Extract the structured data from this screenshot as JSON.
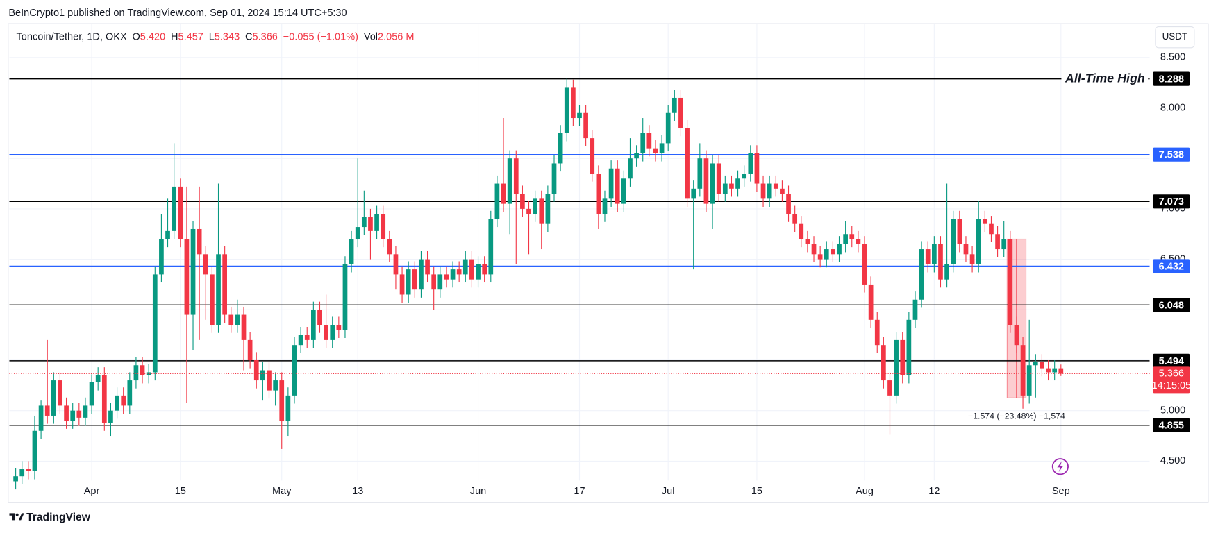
{
  "attribution": "BeInCrypto1 published on TradingView.com, Sep 01, 2024 15:14 UTC+5:30",
  "footer": "TradingView",
  "currency_button": "USDT",
  "chart_data": {
    "type": "candlestick",
    "legend": {
      "symbol": "Toncoin/Tether, 1D, OKX",
      "items": [
        {
          "key": "O",
          "value": "5.420"
        },
        {
          "key": "H",
          "value": "5.457"
        },
        {
          "key": "L",
          "value": "5.343"
        },
        {
          "key": "C",
          "value": "5.366"
        }
      ],
      "change": "−0.055 (−1.01%)",
      "volume": {
        "key": "Vol",
        "value": "2.056 M"
      }
    },
    "up_color": "#089981",
    "down_color": "#f23645",
    "xlim": [
      "2024-03-19",
      "2024-09-15"
    ],
    "xticks": [
      {
        "value": "2024-04-01",
        "label": "Apr"
      },
      {
        "value": "2024-04-15",
        "label": "15"
      },
      {
        "value": "2024-05-01",
        "label": "May"
      },
      {
        "value": "2024-05-13",
        "label": "13"
      },
      {
        "value": "2024-06-01",
        "label": "Jun"
      },
      {
        "value": "2024-06-17",
        "label": "17"
      },
      {
        "value": "2024-07-01",
        "label": "Jul"
      },
      {
        "value": "2024-07-15",
        "label": "15"
      },
      {
        "value": "2024-08-01",
        "label": "Aug"
      },
      {
        "value": "2024-08-12",
        "label": "12"
      },
      {
        "value": "2024-09-01",
        "label": "Sep"
      }
    ],
    "ylim": [
      4.092,
      8.831
    ],
    "yticks": [
      {
        "value": 4.5,
        "label": "4.500"
      },
      {
        "value": 5,
        "label": "5.000"
      },
      {
        "value": 5.5,
        "label": "5.500"
      },
      {
        "value": 6,
        "label": "6.000"
      },
      {
        "value": 6.5,
        "label": "6.500"
      },
      {
        "value": 7,
        "label": "7.000"
      },
      {
        "value": 7.5,
        "label": "7.500"
      },
      {
        "value": 8,
        "label": "8.000"
      },
      {
        "value": 8.5,
        "label": "8.500"
      }
    ],
    "grid": true,
    "levels": [
      {
        "value": 8.288,
        "color": "#000000",
        "label": "All-Time High"
      },
      {
        "value": 7.538,
        "color": "#2962ff"
      },
      {
        "value": 7.073,
        "color": "#000000"
      },
      {
        "value": 6.432,
        "color": "#2962ff"
      },
      {
        "value": 6.048,
        "color": "#000000"
      },
      {
        "value": 5.494,
        "color": "#000000"
      },
      {
        "value": 4.855,
        "color": "#000000"
      }
    ],
    "last": {
      "value": 5.366,
      "countdown": "14:15:05",
      "color": "#f23645"
    },
    "measure": {
      "from": 6.7,
      "to": 5.126,
      "x": [
        "2024-08-24",
        "2024-08-26"
      ],
      "label": "−1.574 (−23.48%) −1,574"
    },
    "x": [
      "2024-03-20",
      "2024-03-21",
      "2024-03-22",
      "2024-03-23",
      "2024-03-24",
      "2024-03-25",
      "2024-03-26",
      "2024-03-27",
      "2024-03-28",
      "2024-03-29",
      "2024-03-30",
      "2024-03-31",
      "2024-04-01",
      "2024-04-02",
      "2024-04-03",
      "2024-04-04",
      "2024-04-05",
      "2024-04-06",
      "2024-04-07",
      "2024-04-08",
      "2024-04-09",
      "2024-04-10",
      "2024-04-11",
      "2024-04-12",
      "2024-04-13",
      "2024-04-14",
      "2024-04-15",
      "2024-04-16",
      "2024-04-17",
      "2024-04-18",
      "2024-04-19",
      "2024-04-20",
      "2024-04-21",
      "2024-04-22",
      "2024-04-23",
      "2024-04-24",
      "2024-04-25",
      "2024-04-26",
      "2024-04-27",
      "2024-04-28",
      "2024-04-29",
      "2024-04-30",
      "2024-05-01",
      "2024-05-02",
      "2024-05-03",
      "2024-05-04",
      "2024-05-05",
      "2024-05-06",
      "2024-05-07",
      "2024-05-08",
      "2024-05-09",
      "2024-05-10",
      "2024-05-11",
      "2024-05-12",
      "2024-05-13",
      "2024-05-14",
      "2024-05-15",
      "2024-05-16",
      "2024-05-17",
      "2024-05-18",
      "2024-05-19",
      "2024-05-20",
      "2024-05-21",
      "2024-05-22",
      "2024-05-23",
      "2024-05-24",
      "2024-05-25",
      "2024-05-26",
      "2024-05-27",
      "2024-05-28",
      "2024-05-29",
      "2024-05-30",
      "2024-05-31",
      "2024-06-01",
      "2024-06-02",
      "2024-06-03",
      "2024-06-04",
      "2024-06-05",
      "2024-06-06",
      "2024-06-07",
      "2024-06-08",
      "2024-06-09",
      "2024-06-10",
      "2024-06-11",
      "2024-06-12",
      "2024-06-13",
      "2024-06-14",
      "2024-06-15",
      "2024-06-16",
      "2024-06-17",
      "2024-06-18",
      "2024-06-19",
      "2024-06-20",
      "2024-06-21",
      "2024-06-22",
      "2024-06-23",
      "2024-06-24",
      "2024-06-25",
      "2024-06-26",
      "2024-06-27",
      "2024-06-28",
      "2024-06-29",
      "2024-06-30",
      "2024-07-01",
      "2024-07-02",
      "2024-07-03",
      "2024-07-04",
      "2024-07-05",
      "2024-07-06",
      "2024-07-07",
      "2024-07-08",
      "2024-07-09",
      "2024-07-10",
      "2024-07-11",
      "2024-07-12",
      "2024-07-13",
      "2024-07-14",
      "2024-07-15",
      "2024-07-16",
      "2024-07-17",
      "2024-07-18",
      "2024-07-19",
      "2024-07-20",
      "2024-07-21",
      "2024-07-22",
      "2024-07-23",
      "2024-07-24",
      "2024-07-25",
      "2024-07-26",
      "2024-07-27",
      "2024-07-28",
      "2024-07-29",
      "2024-07-30",
      "2024-07-31",
      "2024-08-01",
      "2024-08-02",
      "2024-08-03",
      "2024-08-04",
      "2024-08-05",
      "2024-08-06",
      "2024-08-07",
      "2024-08-08",
      "2024-08-09",
      "2024-08-10",
      "2024-08-11",
      "2024-08-12",
      "2024-08-13",
      "2024-08-14",
      "2024-08-15",
      "2024-08-16",
      "2024-08-17",
      "2024-08-18",
      "2024-08-19",
      "2024-08-20",
      "2024-08-21",
      "2024-08-22",
      "2024-08-23",
      "2024-08-24",
      "2024-08-25",
      "2024-08-26",
      "2024-08-27",
      "2024-08-28",
      "2024-08-29",
      "2024-08-30",
      "2024-08-31",
      "2024-09-01"
    ],
    "ohlc": [
      [
        4.3,
        4.43,
        4.22,
        4.35
      ],
      [
        4.35,
        4.5,
        4.27,
        4.42
      ],
      [
        4.42,
        4.5,
        4.32,
        4.4
      ],
      [
        4.4,
        4.95,
        4.32,
        4.8
      ],
      [
        4.8,
        5.1,
        4.72,
        5.05
      ],
      [
        5.05,
        5.7,
        4.87,
        4.95
      ],
      [
        4.95,
        5.38,
        4.87,
        5.3
      ],
      [
        5.3,
        5.38,
        4.97,
        5.05
      ],
      [
        5.05,
        5.13,
        4.82,
        4.9
      ],
      [
        4.9,
        5.08,
        4.82,
        5.0
      ],
      [
        5.0,
        5.08,
        4.85,
        4.93
      ],
      [
        4.93,
        5.13,
        4.85,
        5.05
      ],
      [
        5.05,
        5.36,
        4.97,
        5.28
      ],
      [
        5.28,
        5.43,
        5.2,
        5.35
      ],
      [
        5.35,
        5.43,
        4.8,
        4.88
      ],
      [
        4.88,
        5.08,
        4.75,
        5.0
      ],
      [
        5.0,
        5.23,
        4.92,
        5.15
      ],
      [
        5.15,
        5.23,
        4.97,
        5.05
      ],
      [
        5.05,
        5.38,
        4.97,
        5.3
      ],
      [
        5.3,
        5.53,
        5.22,
        5.45
      ],
      [
        5.45,
        5.53,
        5.27,
        5.35
      ],
      [
        5.35,
        5.46,
        5.27,
        5.38
      ],
      [
        5.38,
        6.43,
        5.3,
        6.35
      ],
      [
        6.35,
        6.95,
        6.27,
        6.7
      ],
      [
        6.7,
        7.1,
        6.62,
        6.78
      ],
      [
        6.78,
        7.65,
        6.7,
        7.22
      ],
      [
        7.22,
        7.3,
        6.62,
        6.7
      ],
      [
        6.7,
        7.22,
        5.08,
        5.95
      ],
      [
        5.95,
        6.88,
        5.6,
        6.8
      ],
      [
        6.8,
        7.22,
        5.7,
        6.55
      ],
      [
        6.55,
        6.63,
        5.9,
        6.35
      ],
      [
        6.35,
        6.43,
        5.77,
        5.85
      ],
      [
        5.85,
        7.25,
        5.77,
        6.55
      ],
      [
        6.55,
        6.63,
        5.87,
        5.95
      ],
      [
        5.95,
        6.03,
        5.77,
        5.85
      ],
      [
        5.85,
        6.1,
        5.77,
        5.95
      ],
      [
        5.95,
        6.03,
        5.4,
        5.7
      ],
      [
        5.7,
        5.78,
        5.42,
        5.5
      ],
      [
        5.5,
        5.58,
        5.22,
        5.3
      ],
      [
        5.3,
        5.48,
        5.1,
        5.4
      ],
      [
        5.4,
        5.48,
        5.12,
        5.2
      ],
      [
        5.2,
        5.38,
        5.05,
        5.3
      ],
      [
        5.3,
        5.38,
        4.62,
        4.9
      ],
      [
        4.9,
        5.23,
        4.75,
        5.15
      ],
      [
        5.15,
        5.73,
        5.07,
        5.65
      ],
      [
        5.65,
        5.83,
        5.57,
        5.75
      ],
      [
        5.75,
        5.83,
        5.62,
        5.7
      ],
      [
        5.7,
        6.08,
        5.62,
        6.0
      ],
      [
        6.0,
        6.08,
        5.77,
        5.85
      ],
      [
        5.85,
        6.15,
        5.62,
        5.7
      ],
      [
        5.7,
        5.93,
        5.62,
        5.85
      ],
      [
        5.85,
        5.93,
        5.72,
        5.8
      ],
      [
        5.8,
        6.53,
        5.72,
        6.45
      ],
      [
        6.45,
        6.78,
        6.37,
        6.7
      ],
      [
        6.7,
        7.5,
        6.62,
        6.82
      ],
      [
        6.82,
        7.18,
        6.74,
        6.92
      ],
      [
        6.92,
        7.0,
        6.5,
        6.78
      ],
      [
        6.78,
        7.03,
        6.7,
        6.95
      ],
      [
        6.95,
        7.03,
        6.62,
        6.7
      ],
      [
        6.7,
        6.78,
        6.47,
        6.55
      ],
      [
        6.55,
        6.63,
        6.2,
        6.35
      ],
      [
        6.35,
        6.43,
        6.07,
        6.15
      ],
      [
        6.15,
        6.48,
        6.07,
        6.4
      ],
      [
        6.4,
        6.48,
        6.12,
        6.2
      ],
      [
        6.2,
        6.58,
        6.12,
        6.5
      ],
      [
        6.5,
        6.58,
        6.27,
        6.35
      ],
      [
        6.35,
        6.43,
        6.0,
        6.2
      ],
      [
        6.2,
        6.43,
        6.12,
        6.35
      ],
      [
        6.35,
        6.43,
        6.22,
        6.3
      ],
      [
        6.3,
        6.48,
        6.22,
        6.4
      ],
      [
        6.4,
        6.48,
        6.27,
        6.35
      ],
      [
        6.35,
        6.58,
        6.27,
        6.5
      ],
      [
        6.5,
        6.58,
        6.22,
        6.3
      ],
      [
        6.3,
        6.53,
        6.22,
        6.45
      ],
      [
        6.45,
        6.53,
        6.27,
        6.35
      ],
      [
        6.35,
        6.98,
        6.27,
        6.9
      ],
      [
        6.9,
        7.33,
        6.82,
        7.25
      ],
      [
        7.25,
        7.9,
        6.97,
        7.05
      ],
      [
        7.05,
        7.58,
        6.75,
        7.5
      ],
      [
        7.5,
        7.58,
        6.45,
        7.15
      ],
      [
        7.15,
        7.23,
        6.92,
        7.0
      ],
      [
        7.0,
        7.08,
        6.55,
        6.95
      ],
      [
        6.95,
        7.18,
        6.87,
        7.1
      ],
      [
        7.1,
        7.18,
        6.6,
        6.85
      ],
      [
        6.85,
        7.23,
        6.77,
        7.15
      ],
      [
        7.15,
        7.53,
        7.07,
        7.45
      ],
      [
        7.45,
        7.83,
        7.37,
        7.75
      ],
      [
        7.75,
        8.29,
        7.67,
        8.2
      ],
      [
        8.2,
        8.28,
        7.82,
        7.9
      ],
      [
        7.9,
        8.03,
        7.82,
        7.95
      ],
      [
        7.95,
        8.03,
        7.62,
        7.7
      ],
      [
        7.7,
        7.78,
        7.27,
        7.35
      ],
      [
        7.35,
        7.43,
        6.8,
        6.95
      ],
      [
        6.95,
        7.18,
        6.87,
        7.1
      ],
      [
        7.1,
        7.48,
        7.02,
        7.4
      ],
      [
        7.4,
        7.48,
        6.97,
        7.05
      ],
      [
        7.05,
        7.38,
        6.97,
        7.3
      ],
      [
        7.3,
        7.7,
        7.22,
        7.5
      ],
      [
        7.5,
        7.63,
        7.42,
        7.55
      ],
      [
        7.55,
        7.9,
        7.47,
        7.75
      ],
      [
        7.75,
        7.83,
        7.52,
        7.6
      ],
      [
        7.6,
        7.68,
        7.47,
        7.55
      ],
      [
        7.55,
        7.73,
        7.47,
        7.65
      ],
      [
        7.65,
        8.03,
        7.57,
        7.95
      ],
      [
        7.95,
        8.18,
        7.87,
        8.1
      ],
      [
        8.1,
        8.18,
        7.72,
        7.8
      ],
      [
        7.8,
        7.88,
        7.02,
        7.1
      ],
      [
        7.1,
        7.28,
        6.4,
        7.2
      ],
      [
        7.2,
        7.65,
        7.12,
        7.5
      ],
      [
        7.5,
        7.58,
        6.97,
        7.05
      ],
      [
        7.05,
        7.53,
        6.8,
        7.45
      ],
      [
        7.45,
        7.53,
        7.07,
        7.15
      ],
      [
        7.15,
        7.33,
        7.07,
        7.25
      ],
      [
        7.25,
        7.33,
        7.12,
        7.2
      ],
      [
        7.2,
        7.38,
        7.12,
        7.3
      ],
      [
        7.3,
        7.43,
        7.22,
        7.35
      ],
      [
        7.35,
        7.63,
        7.27,
        7.55
      ],
      [
        7.55,
        7.63,
        7.17,
        7.25
      ],
      [
        7.25,
        7.33,
        7.02,
        7.1
      ],
      [
        7.1,
        7.33,
        7.02,
        7.25
      ],
      [
        7.25,
        7.33,
        7.12,
        7.2
      ],
      [
        7.2,
        7.28,
        7.07,
        7.15
      ],
      [
        7.15,
        7.23,
        6.87,
        6.95
      ],
      [
        6.95,
        7.03,
        6.77,
        6.85
      ],
      [
        6.85,
        6.93,
        6.62,
        6.7
      ],
      [
        6.7,
        6.78,
        6.57,
        6.65
      ],
      [
        6.65,
        6.73,
        6.47,
        6.55
      ],
      [
        6.55,
        6.63,
        6.42,
        6.5
      ],
      [
        6.5,
        6.68,
        6.42,
        6.6
      ],
      [
        6.6,
        6.68,
        6.47,
        6.55
      ],
      [
        6.55,
        6.73,
        6.47,
        6.65
      ],
      [
        6.65,
        6.88,
        6.57,
        6.75
      ],
      [
        6.75,
        6.83,
        6.62,
        6.7
      ],
      [
        6.7,
        6.78,
        6.57,
        6.65
      ],
      [
        6.65,
        6.73,
        6.17,
        6.25
      ],
      [
        6.25,
        6.33,
        5.82,
        5.9
      ],
      [
        5.9,
        5.98,
        5.57,
        5.65
      ],
      [
        5.65,
        5.73,
        5.22,
        5.3
      ],
      [
        5.3,
        5.38,
        4.76,
        5.15
      ],
      [
        5.15,
        5.78,
        5.07,
        5.7
      ],
      [
        5.7,
        5.78,
        5.27,
        5.35
      ],
      [
        5.35,
        5.98,
        5.27,
        5.9
      ],
      [
        5.9,
        6.18,
        5.82,
        6.1
      ],
      [
        6.1,
        6.68,
        6.02,
        6.6
      ],
      [
        6.6,
        6.68,
        6.37,
        6.45
      ],
      [
        6.45,
        6.73,
        6.37,
        6.65
      ],
      [
        6.65,
        6.73,
        6.22,
        6.3
      ],
      [
        6.3,
        7.25,
        6.22,
        6.45
      ],
      [
        6.45,
        6.98,
        6.37,
        6.9
      ],
      [
        6.9,
        6.98,
        6.57,
        6.65
      ],
      [
        6.65,
        6.73,
        6.47,
        6.55
      ],
      [
        6.55,
        6.63,
        6.37,
        6.45
      ],
      [
        6.45,
        7.08,
        6.37,
        6.9
      ],
      [
        6.9,
        6.98,
        6.77,
        6.85
      ],
      [
        6.85,
        6.93,
        6.67,
        6.75
      ],
      [
        6.75,
        6.83,
        6.52,
        6.6
      ],
      [
        6.6,
        6.88,
        6.52,
        6.7
      ],
      [
        6.7,
        6.78,
        5.77,
        5.85
      ],
      [
        5.85,
        5.93,
        5.57,
        5.65
      ],
      [
        5.65,
        5.73,
        5.02,
        5.15
      ],
      [
        5.15,
        5.9,
        5.07,
        5.45
      ],
      [
        5.45,
        5.56,
        5.13,
        5.48
      ],
      [
        5.48,
        5.56,
        5.34,
        5.42
      ],
      [
        5.42,
        5.5,
        5.3,
        5.38
      ],
      [
        5.38,
        5.5,
        5.3,
        5.42
      ],
      [
        5.42,
        5.457,
        5.343,
        5.366
      ]
    ]
  }
}
